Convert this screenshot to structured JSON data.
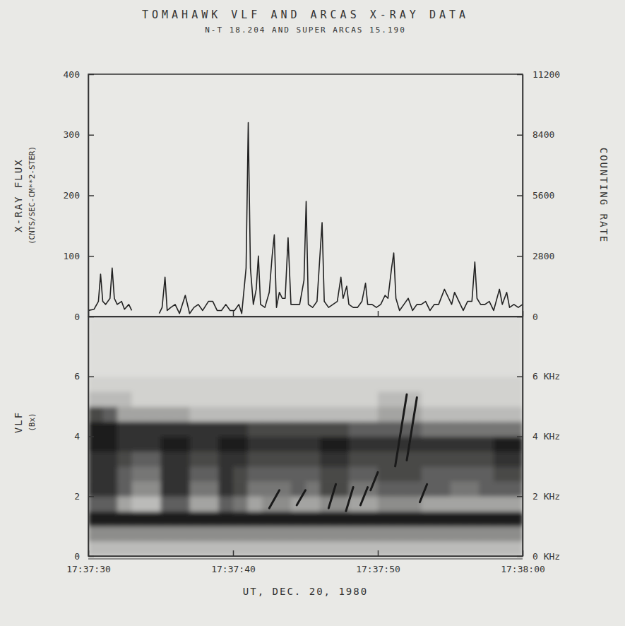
{
  "chart_data": [
    {
      "type": "line",
      "title": "TOMAHAWK VLF AND ARCAS X-RAY DATA",
      "subtitle": "N-T 18.204 AND SUPER ARCAS 15.190",
      "ylabel": [
        "X-RAY FLUX",
        "(CNTS/SEC-CM**2-STER)"
      ],
      "y2label": "COUNTING RATE",
      "color": "#222222",
      "tick_labels": "y",
      "xlim": [
        63450,
        63480
      ],
      "xticks": [
        63450,
        63460,
        63470,
        63480
      ],
      "ylim": [
        0,
        400
      ],
      "yticks": [
        0,
        100,
        200,
        300,
        400
      ],
      "y2lim": [
        0,
        11200
      ],
      "y2ticks": [
        0,
        2800,
        5600,
        8400,
        11200
      ],
      "x": [
        63450,
        63450.4,
        63450.7,
        63450.85,
        63451,
        63451.2,
        63451.5,
        63451.65,
        63451.8,
        63452,
        63452.3,
        63452.5,
        63452.8,
        63453,
        63454,
        63454.9,
        63455.1,
        63455.3,
        63455.45,
        63455.7,
        63456,
        63456.3,
        63456.7,
        63457,
        63457.3,
        63457.6,
        63457.9,
        63458.3,
        63458.6,
        63458.9,
        63459.2,
        63459.5,
        63459.8,
        63460.1,
        63460.4,
        63460.6,
        63460.9,
        63461.05,
        63461.2,
        63461.4,
        63461.6,
        63461.75,
        63461.9,
        63462.2,
        63462.5,
        63462.7,
        63462.85,
        63463,
        63463.2,
        63463.4,
        63463.6,
        63463.8,
        63464,
        63464.3,
        63464.6,
        63464.9,
        63465.05,
        63465.2,
        63465.5,
        63465.8,
        63466,
        63466.15,
        63466.3,
        63466.6,
        63466.9,
        63467.2,
        63467.45,
        63467.6,
        63467.85,
        63468,
        63468.3,
        63468.6,
        63468.9,
        63469.15,
        63469.3,
        63469.6,
        63469.9,
        63470.2,
        63470.5,
        63470.7,
        63470.95,
        63471.1,
        63471.25,
        63471.5,
        63471.8,
        63472.1,
        63472.4,
        63472.7,
        63473,
        63473.3,
        63473.6,
        63473.9,
        63474.2,
        63474.6,
        63474.9,
        63475.1,
        63475.3,
        63475.6,
        63475.9,
        63476.2,
        63476.5,
        63476.7,
        63476.85,
        63477.1,
        63477.4,
        63477.7,
        63478,
        63478.4,
        63478.6,
        63478.9,
        63479.1,
        63479.4,
        63479.7,
        63480
      ],
      "values": [
        10,
        12,
        25,
        70,
        25,
        20,
        30,
        80,
        30,
        20,
        25,
        12,
        20,
        10,
        null,
        5,
        15,
        65,
        10,
        15,
        20,
        5,
        35,
        5,
        15,
        20,
        10,
        25,
        25,
        10,
        10,
        20,
        10,
        10,
        20,
        5,
        80,
        320,
        80,
        20,
        45,
        100,
        20,
        15,
        40,
        100,
        135,
        15,
        40,
        30,
        30,
        130,
        20,
        20,
        20,
        60,
        190,
        20,
        15,
        25,
        100,
        155,
        25,
        15,
        20,
        25,
        65,
        30,
        50,
        20,
        15,
        15,
        25,
        55,
        20,
        20,
        15,
        20,
        35,
        30,
        80,
        105,
        30,
        10,
        20,
        30,
        10,
        20,
        20,
        25,
        10,
        20,
        20,
        45,
        30,
        20,
        40,
        25,
        10,
        25,
        25,
        90,
        30,
        20,
        20,
        25,
        10,
        45,
        20,
        40,
        15,
        20,
        15,
        20
      ]
    },
    {
      "type": "heatmap",
      "ylabel": [
        "VLF",
        "(Bx)"
      ],
      "xlabel": "UT, DEC. 20, 1980",
      "color": "#1a1a1a",
      "xlim": [
        63450,
        63480
      ],
      "xticks": [
        {
          "value": 63450,
          "label": "17:37:30"
        },
        {
          "value": 63460,
          "label": "17:37:40"
        },
        {
          "value": 63470,
          "label": "17:37:50"
        },
        {
          "value": 63480,
          "label": "17:38:00"
        }
      ],
      "ylim": [
        0,
        8
      ],
      "yticks": [
        0,
        2,
        4,
        6
      ],
      "y2lim": [
        0,
        8
      ],
      "y2ticks": [
        {
          "value": 0,
          "label": "0 KHz"
        },
        {
          "value": 2,
          "label": "2 KHz"
        },
        {
          "value": 4,
          "label": "4 KHz"
        },
        {
          "value": 6,
          "label": "6 KHz"
        }
      ],
      "x_bins": [
        63450,
        63451,
        63452,
        63453,
        63454,
        63455,
        63456,
        63457,
        63458,
        63459,
        63460,
        63461,
        63462,
        63463,
        63464,
        63465,
        63466,
        63467,
        63468,
        63469,
        63470,
        63471,
        63472,
        63473,
        63474,
        63475,
        63476,
        63477,
        63478,
        63479,
        63480
      ],
      "y_bins": [
        0,
        0.5,
        1,
        1.5,
        2,
        2.5,
        3,
        3.5,
        4,
        4.5,
        5,
        5.5,
        6,
        6.5,
        7,
        7.5,
        8
      ],
      "z": [
        [
          0.2,
          0.2,
          0.2,
          0.2,
          0.2,
          0.2,
          0.2,
          0.2,
          0.2,
          0.2,
          0.2,
          0.2,
          0.2,
          0.2,
          0.2,
          0.2,
          0.2,
          0.2,
          0.2,
          0.2,
          0.2,
          0.2,
          0.2,
          0.2,
          0.2,
          0.2,
          0.2,
          0.2,
          0.2,
          0.2
        ],
        [
          0.4,
          0.4,
          0.4,
          0.4,
          0.4,
          0.4,
          0.4,
          0.4,
          0.4,
          0.4,
          0.4,
          0.4,
          0.4,
          0.4,
          0.4,
          0.4,
          0.4,
          0.4,
          0.4,
          0.4,
          0.4,
          0.4,
          0.4,
          0.4,
          0.4,
          0.4,
          0.4,
          0.4,
          0.4,
          0.4
        ],
        [
          0.9,
          0.9,
          0.9,
          0.9,
          0.9,
          0.9,
          0.9,
          0.9,
          0.9,
          0.9,
          0.9,
          0.9,
          0.9,
          0.9,
          0.9,
          0.9,
          0.9,
          0.9,
          0.9,
          0.9,
          0.9,
          0.9,
          0.9,
          0.9,
          0.9,
          0.9,
          0.9,
          0.9,
          0.9,
          0.9
        ],
        [
          0.6,
          0.6,
          0.3,
          0.2,
          0.2,
          0.6,
          0.6,
          0.3,
          0.3,
          0.6,
          0.5,
          0.3,
          0.4,
          0.4,
          0.3,
          0.3,
          0.4,
          0.4,
          0.3,
          0.3,
          0.4,
          0.4,
          0.4,
          0.3,
          0.3,
          0.3,
          0.3,
          0.3,
          0.3,
          0.3
        ],
        [
          0.8,
          0.8,
          0.6,
          0.4,
          0.4,
          0.8,
          0.8,
          0.5,
          0.5,
          0.8,
          0.7,
          0.5,
          0.5,
          0.5,
          0.6,
          0.5,
          0.7,
          0.7,
          0.5,
          0.5,
          0.6,
          0.6,
          0.6,
          0.6,
          0.6,
          0.5,
          0.5,
          0.6,
          0.6,
          0.6
        ],
        [
          0.8,
          0.8,
          0.6,
          0.5,
          0.5,
          0.8,
          0.8,
          0.6,
          0.6,
          0.8,
          0.7,
          0.6,
          0.6,
          0.6,
          0.6,
          0.6,
          0.7,
          0.7,
          0.6,
          0.6,
          0.7,
          0.7,
          0.7,
          0.6,
          0.6,
          0.6,
          0.6,
          0.6,
          0.7,
          0.7
        ],
        [
          0.8,
          0.8,
          0.7,
          0.6,
          0.6,
          0.8,
          0.8,
          0.7,
          0.7,
          0.8,
          0.8,
          0.7,
          0.7,
          0.7,
          0.7,
          0.7,
          0.8,
          0.8,
          0.7,
          0.7,
          0.7,
          0.7,
          0.7,
          0.7,
          0.7,
          0.7,
          0.7,
          0.7,
          0.8,
          0.8
        ],
        [
          0.9,
          0.9,
          0.8,
          0.8,
          0.8,
          0.9,
          0.9,
          0.8,
          0.8,
          0.9,
          0.9,
          0.8,
          0.8,
          0.8,
          0.8,
          0.8,
          0.9,
          0.9,
          0.8,
          0.8,
          0.8,
          0.8,
          0.8,
          0.8,
          0.8,
          0.8,
          0.8,
          0.8,
          0.9,
          0.9
        ],
        [
          0.9,
          0.9,
          0.8,
          0.8,
          0.8,
          0.8,
          0.8,
          0.8,
          0.8,
          0.8,
          0.8,
          0.7,
          0.7,
          0.7,
          0.7,
          0.7,
          0.7,
          0.7,
          0.6,
          0.6,
          0.6,
          0.6,
          0.6,
          0.5,
          0.5,
          0.5,
          0.5,
          0.5,
          0.5,
          0.5
        ],
        [
          0.7,
          0.6,
          0.3,
          0.3,
          0.3,
          0.3,
          0.3,
          0.2,
          0.2,
          0.2,
          0.2,
          0.2,
          0.2,
          0.2,
          0.2,
          0.2,
          0.2,
          0.2,
          0.2,
          0.2,
          0.3,
          0.3,
          0.3,
          0.2,
          0.2,
          0.2,
          0.2,
          0.2,
          0.2,
          0.2
        ],
        [
          0.2,
          0.2,
          0.2,
          0.1,
          0.1,
          0.1,
          0.1,
          0.1,
          0.1,
          0.1,
          0.1,
          0.1,
          0.1,
          0.1,
          0.1,
          0.1,
          0.1,
          0.1,
          0.1,
          0.1,
          0.2,
          0.2,
          0.2,
          0.1,
          0.1,
          0.1,
          0.1,
          0.1,
          0.1,
          0.1
        ],
        [
          0.1,
          0.1,
          0.1,
          0.1,
          0.1,
          0.1,
          0.1,
          0.1,
          0.1,
          0.1,
          0.1,
          0.1,
          0.1,
          0.1,
          0.1,
          0.1,
          0.1,
          0.1,
          0.1,
          0.1,
          0.1,
          0.1,
          0.1,
          0.1,
          0.1,
          0.1,
          0.1,
          0.1,
          0.1,
          0.1
        ],
        [
          0.05,
          0.05,
          0.05,
          0.05,
          0.05,
          0.05,
          0.05,
          0.05,
          0.05,
          0.05,
          0.05,
          0.05,
          0.05,
          0.05,
          0.05,
          0.05,
          0.05,
          0.05,
          0.05,
          0.05,
          0.05,
          0.05,
          0.05,
          0.05,
          0.05,
          0.05,
          0.05,
          0.05,
          0.05,
          0.05
        ],
        [
          0.05,
          0.05,
          0.05,
          0.05,
          0.05,
          0.05,
          0.05,
          0.05,
          0.05,
          0.05,
          0.05,
          0.05,
          0.05,
          0.05,
          0.05,
          0.05,
          0.05,
          0.05,
          0.05,
          0.05,
          0.05,
          0.05,
          0.05,
          0.05,
          0.05,
          0.05,
          0.05,
          0.05,
          0.05,
          0.05
        ],
        [
          0.05,
          0.05,
          0.05,
          0.05,
          0.05,
          0.05,
          0.05,
          0.05,
          0.05,
          0.05,
          0.05,
          0.05,
          0.05,
          0.05,
          0.05,
          0.05,
          0.05,
          0.05,
          0.05,
          0.05,
          0.05,
          0.05,
          0.05,
          0.05,
          0.05,
          0.05,
          0.05,
          0.05,
          0.05,
          0.05
        ],
        [
          0.05,
          0.05,
          0.05,
          0.05,
          0.05,
          0.05,
          0.05,
          0.05,
          0.05,
          0.05,
          0.05,
          0.05,
          0.05,
          0.05,
          0.05,
          0.05,
          0.05,
          0.05,
          0.05,
          0.05,
          0.05,
          0.05,
          0.05,
          0.05,
          0.05,
          0.05,
          0.05,
          0.05,
          0.05,
          0.05
        ]
      ],
      "tones": [
        {
          "x": [
            63462.5,
            63463.2
          ],
          "y": [
            1.6,
            2.2
          ]
        },
        {
          "x": [
            63464.4,
            63465.0
          ],
          "y": [
            1.7,
            2.2
          ]
        },
        {
          "x": [
            63466.6,
            63467.1
          ],
          "y": [
            1.6,
            2.4
          ]
        },
        {
          "x": [
            63467.8,
            63468.3
          ],
          "y": [
            1.5,
            2.3
          ]
        },
        {
          "x": [
            63468.8,
            63469.3
          ],
          "y": [
            1.7,
            2.3
          ]
        },
        {
          "x": [
            63469.5,
            63470.0
          ],
          "y": [
            2.2,
            2.8
          ]
        },
        {
          "x": [
            63471.2,
            63472.0
          ],
          "y": [
            3.0,
            5.4
          ]
        },
        {
          "x": [
            63472.0,
            63472.7
          ],
          "y": [
            3.2,
            5.3
          ]
        },
        {
          "x": [
            63472.9,
            63473.4
          ],
          "y": [
            1.8,
            2.4
          ]
        }
      ]
    }
  ]
}
